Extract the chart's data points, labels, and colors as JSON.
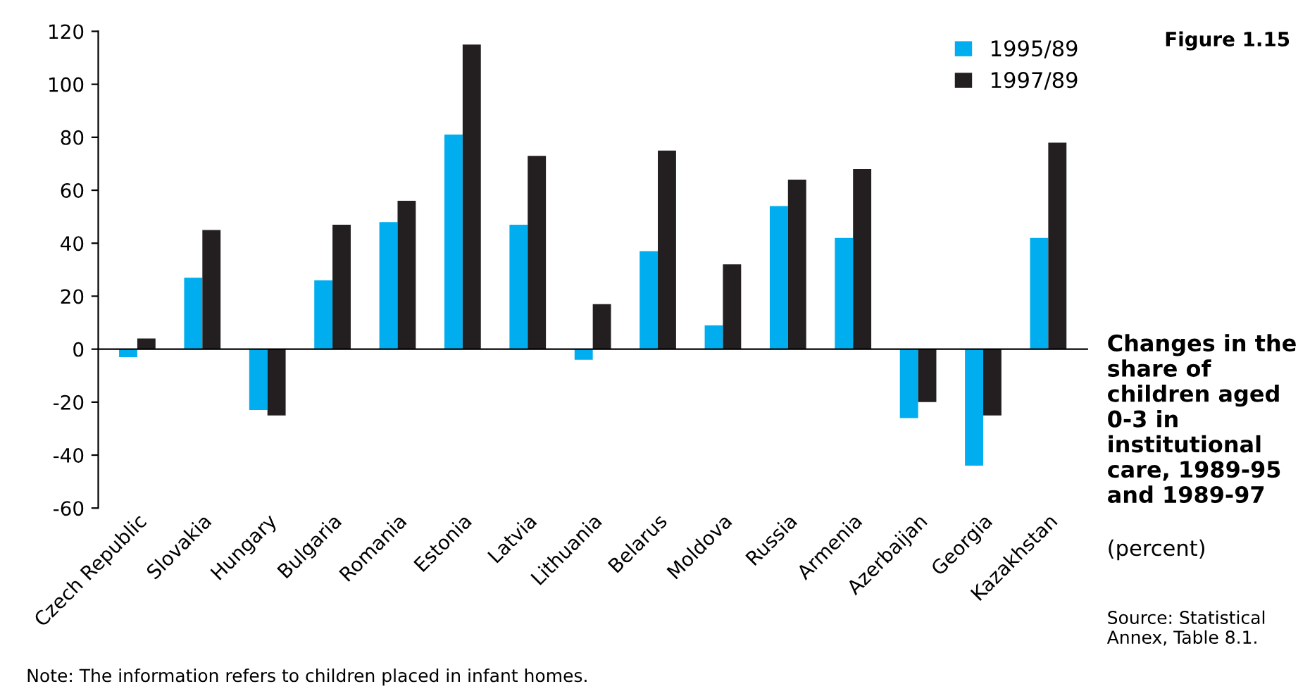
{
  "chart_data": {
    "type": "bar",
    "title": "Changes in the share of children aged 0-3 in institutional care, 1989-95 and 1989-97",
    "subtitle": "(percent)",
    "annotations": [
      "Figure 1.15",
      "Source: Statistical Annex, Table 8.1.",
      "Note: The information refers to children placed in infant homes."
    ],
    "categories": [
      "Czech Republic",
      "Slovakia",
      "Hungary",
      "Bulgaria",
      "Romania",
      "Estonia",
      "Latvia",
      "Lithuania",
      "Belarus",
      "Moldova",
      "Russia",
      "Armenia",
      "Azerbaijan",
      "Georgia",
      "Kazakhstan"
    ],
    "series": [
      {
        "name": "1995/89",
        "color": "#00aeef",
        "values": [
          -3,
          27,
          -23,
          26,
          48,
          81,
          47,
          -4,
          37,
          9,
          54,
          42,
          -26,
          -44,
          42
        ]
      },
      {
        "name": "1997/89",
        "color": "#231f20",
        "values": [
          4,
          45,
          -25,
          47,
          56,
          115,
          73,
          17,
          75,
          32,
          64,
          68,
          -20,
          -25,
          78
        ]
      }
    ],
    "ylim": [
      -60,
      120
    ],
    "yticks": [
      -60,
      -40,
      -20,
      0,
      20,
      40,
      60,
      80,
      100,
      120
    ],
    "legend": "top right"
  }
}
